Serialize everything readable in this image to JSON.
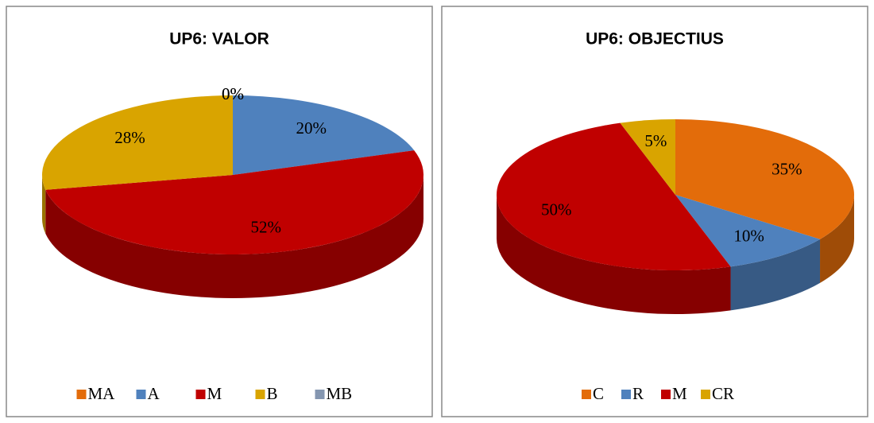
{
  "chart_data": [
    {
      "type": "pie",
      "title": "UP6: VALOR",
      "categories": [
        "MA",
        "A",
        "M",
        "B",
        "MB"
      ],
      "values": [
        0,
        20,
        52,
        28,
        0
      ],
      "value_labels": [
        "0%",
        "20%",
        "52%",
        "28%",
        "0%"
      ],
      "colors": [
        "#e36c0a",
        "#4f81bd",
        "#c00000",
        "#d9a400",
        "#8496b0"
      ],
      "legend": "bottom"
    },
    {
      "type": "pie",
      "title": "UP6: OBJECTIUS",
      "categories": [
        "C",
        "R",
        "M",
        "CR"
      ],
      "values": [
        35,
        10,
        50,
        5
      ],
      "value_labels": [
        "35%",
        "10%",
        "50%",
        "5%"
      ],
      "colors": [
        "#e36c0a",
        "#4f81bd",
        "#c00000",
        "#d9a400"
      ],
      "legend": "bottom"
    }
  ]
}
